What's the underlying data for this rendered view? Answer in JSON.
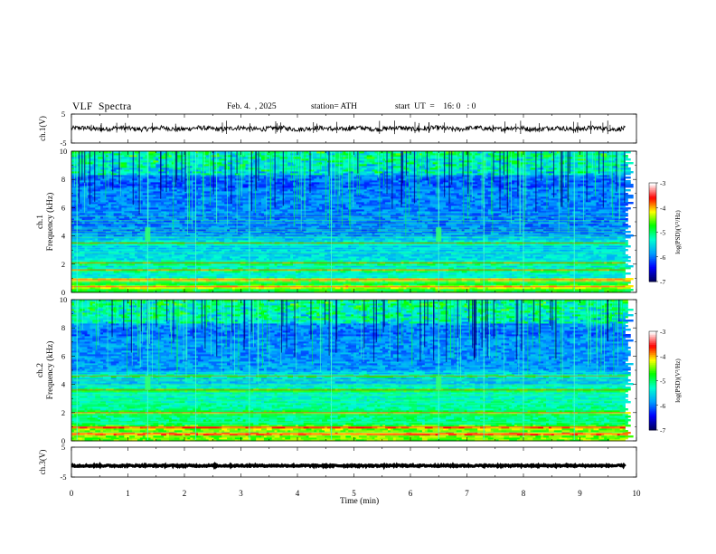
{
  "header": {
    "title": "VLF  Spectra",
    "date": "Feb. 4.  , 2025",
    "station": "station= ATH",
    "start": "start  UT  =    16: 0   : 0"
  },
  "chart_data": [
    {
      "type": "line",
      "name": "ch1-voltage",
      "ylabel": "ch.1(V)",
      "ylim": [
        -5,
        5
      ],
      "yticks": [
        "5",
        "-5"
      ],
      "xlim": [
        0,
        10
      ],
      "data_extent_min": [
        0,
        9.8
      ],
      "baseline_v": 0,
      "grid": false
    },
    {
      "type": "heatmap",
      "name": "ch1-spectrogram",
      "ylabel": "Frequency (kHz)",
      "channel_label": "ch.1",
      "ylim": [
        0,
        10
      ],
      "yticks": [
        "0",
        "2",
        "4",
        "6",
        "8",
        "10"
      ],
      "xlim": [
        0,
        10
      ],
      "data_extent_min": [
        0,
        9.8
      ],
      "colorbar": {
        "label": "log(PSD)(V²/Hz)",
        "range": [
          -7,
          -3
        ],
        "ticks": [
          "-3",
          "-4",
          "-5",
          "-6",
          "-7"
        ],
        "colors": [
          "#000060",
          "#0000ff",
          "#00a0ff",
          "#00ffd0",
          "#00ff00",
          "#ffff00",
          "#ff0000",
          "#ffffff"
        ]
      },
      "features": {
        "broadband_lines_min": [
          0.1,
          1.35,
          2.2,
          3.15,
          4.6,
          6.5,
          7.3,
          8.0,
          8.9
        ],
        "bright_bands_khz": [
          0.4,
          0.9,
          1.6,
          2.1,
          3.5
        ]
      }
    },
    {
      "type": "heatmap",
      "name": "ch2-spectrogram",
      "ylabel": "Frequency (kHz)",
      "channel_label": "ch.2",
      "ylim": [
        0,
        10
      ],
      "yticks": [
        "0",
        "2",
        "4",
        "6",
        "8",
        "10"
      ],
      "xlim": [
        0,
        10
      ],
      "data_extent_min": [
        0,
        9.8
      ],
      "colorbar": {
        "label": "log(PSD)(V²/Hz)",
        "range": [
          -7,
          -3
        ],
        "ticks": [
          "-3",
          "-4",
          "-5",
          "-6",
          "-7"
        ],
        "colors": [
          "#000060",
          "#0000ff",
          "#00a0ff",
          "#00ffd0",
          "#00ff00",
          "#ffff00",
          "#ff0000",
          "#ffffff"
        ]
      },
      "features": {
        "broadband_lines_min": [
          0.1,
          1.35,
          2.2,
          3.15,
          4.6,
          6.5,
          7.3,
          8.0,
          8.9
        ],
        "bright_bands_khz": [
          0.5,
          1.0,
          2.0,
          3.6,
          4.6
        ]
      }
    },
    {
      "type": "line",
      "name": "ch3-voltage",
      "ylabel": "ch.3(V)",
      "ylim": [
        -5,
        5
      ],
      "yticks": [
        "5",
        "-5"
      ],
      "xlim": [
        0,
        10
      ],
      "data_extent_min": [
        0,
        9.8
      ],
      "baseline_v": -1.2,
      "grid": false
    }
  ],
  "x_axis": {
    "label": "Time  (min)",
    "ticks": [
      "0",
      "1",
      "2",
      "3",
      "4",
      "5",
      "6",
      "7",
      "8",
      "9",
      "10"
    ]
  }
}
